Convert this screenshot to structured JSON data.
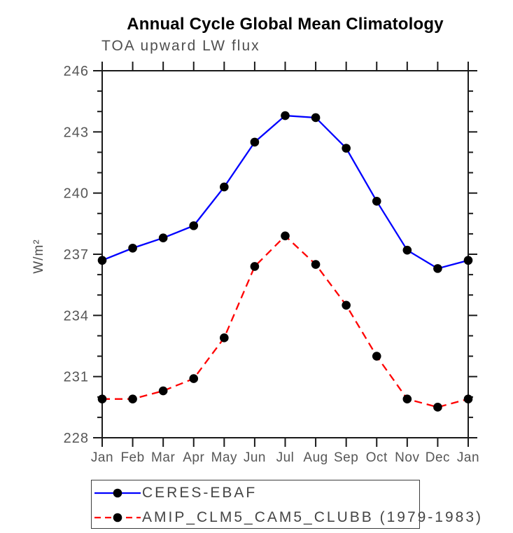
{
  "page": {
    "background": "#ffffff"
  },
  "chart_data": {
    "type": "line",
    "title": "Annual Cycle Global Mean Climatology",
    "subtitle": "TOA upward LW flux",
    "ylabel": "W/m²",
    "xlabel": "",
    "x_categories": [
      "Jan",
      "Feb",
      "Mar",
      "Apr",
      "May",
      "Jun",
      "Jul",
      "Aug",
      "Sep",
      "Oct",
      "Nov",
      "Dec",
      "Jan"
    ],
    "ylim": [
      228,
      246
    ],
    "yticks": [
      228,
      231,
      234,
      237,
      240,
      243,
      246
    ],
    "y_minor_step": 1,
    "grid": false,
    "legend_position": "bottom-left",
    "axis_color": "#1a1a1a",
    "marker": "filled-circle",
    "marker_color": "#000000",
    "series": [
      {
        "name": "CERES-EBAF",
        "color": "#0000ff",
        "line_style": "solid",
        "values": [
          236.7,
          237.3,
          237.8,
          238.4,
          240.3,
          242.5,
          243.8,
          243.7,
          242.2,
          239.6,
          237.2,
          236.3,
          236.7
        ]
      },
      {
        "name": "AMIP_CLM5_CAM5_CLUBB (1979-1983)",
        "color": "#ff0000",
        "line_style": "dashed",
        "values": [
          229.9,
          229.9,
          230.3,
          230.9,
          232.9,
          236.4,
          237.9,
          236.5,
          234.5,
          232.0,
          229.9,
          229.5,
          229.9
        ]
      }
    ]
  }
}
